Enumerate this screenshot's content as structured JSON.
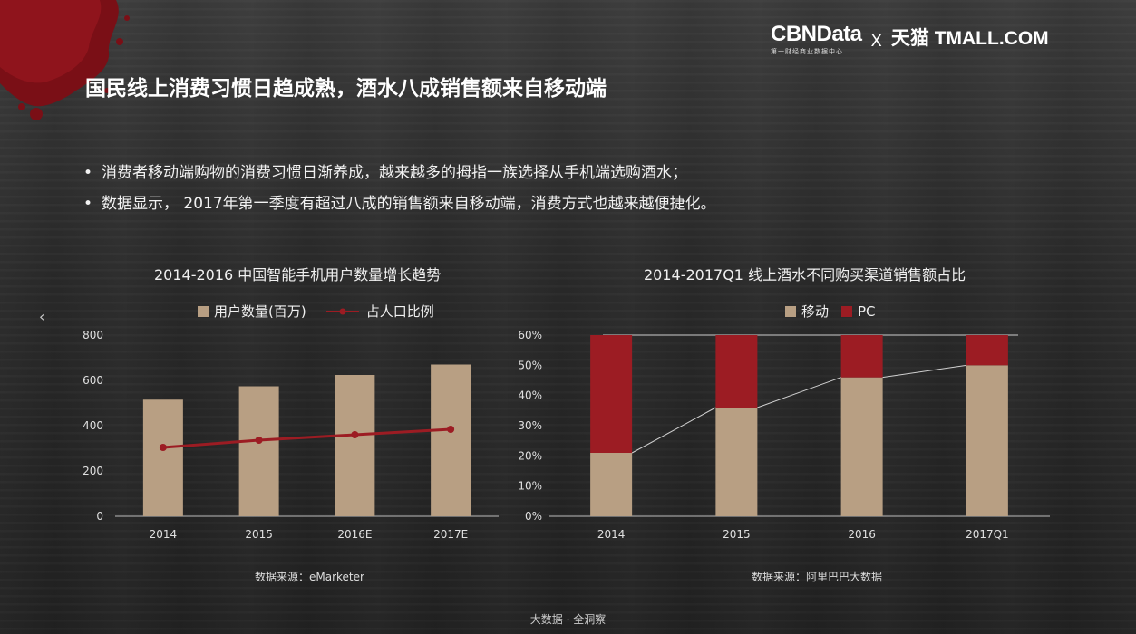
{
  "header": {
    "brand_cbn": "CBNData",
    "brand_cbn_sub": "第一财经商业数据中心",
    "brand_x": "X",
    "brand_tmall": "天猫 TMALL.COM"
  },
  "title": "国民线上消费习惯日趋成熟，酒水八成销售额来自移动端",
  "bullets": [
    "消费者移动端购物的消费习惯日渐养成，越来越多的拇指一族选择从手机端选购酒水；",
    "数据显示， 2017年第一季度有超过八成的销售额来自移动端，消费方式也越来越便捷化。"
  ],
  "nav_prev": "‹",
  "footer": "大数据 · 全洞察",
  "colors": {
    "bar": "#b89f83",
    "red": "#9c1c23",
    "line_white": "#d0d0d0"
  },
  "chart_data": [
    {
      "type": "bar",
      "title": "2014-2016 中国智能手机用户数量增长趋势",
      "categories": [
        "2014",
        "2015",
        "2016E",
        "2017E"
      ],
      "series": [
        {
          "name": "用户数量(百万)",
          "type": "bar",
          "values": [
            515,
            574,
            624,
            670
          ]
        },
        {
          "name": "占人口比例",
          "type": "line",
          "values": [
            38,
            42,
            45,
            48
          ]
        }
      ],
      "ylim": [
        0,
        800
      ],
      "yticks": [
        "0",
        "200",
        "400",
        "600",
        "800"
      ],
      "source": "数据来源：eMarketer"
    },
    {
      "type": "bar",
      "stacked": true,
      "title": "2014-2017Q1 线上酒水不同购买渠道销售额占比",
      "categories": [
        "2014",
        "2015",
        "2016",
        "2017Q1"
      ],
      "series": [
        {
          "name": "移动",
          "values": [
            21,
            36,
            46,
            50
          ]
        },
        {
          "name": "PC",
          "values": [
            39,
            24,
            14,
            10
          ]
        }
      ],
      "ylim": [
        0,
        60
      ],
      "yticks": [
        "0%",
        "10%",
        "20%",
        "30%",
        "40%",
        "50%",
        "60%"
      ],
      "source": "数据来源：阿里巴巴大数据"
    }
  ]
}
